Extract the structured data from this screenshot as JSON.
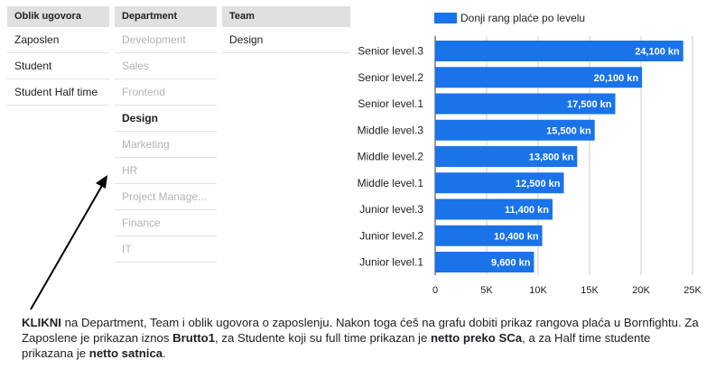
{
  "filters": {
    "oblik": {
      "header": "Oblik ugovora",
      "items": [
        "Zaposlen",
        "Student",
        "Student Half time"
      ]
    },
    "department": {
      "header": "Department",
      "items": [
        "Development",
        "Sales",
        "Frontend",
        "Design",
        "Marketing",
        "HR",
        "Project Manage...",
        "Finance",
        "IT"
      ],
      "selected": "Design"
    },
    "team": {
      "header": "Team",
      "items": [
        "Design"
      ]
    }
  },
  "chart_data": {
    "type": "bar",
    "orientation": "horizontal",
    "categories": [
      "Senior level.3",
      "Senior level.2",
      "Senior level.1",
      "Middle level.3",
      "Middle level.2",
      "Middle level.1",
      "Junior level.3",
      "Junior level.2",
      "Junior level.1"
    ],
    "series": [
      {
        "name": "Donji rang plaće po levelu",
        "values": [
          24100,
          20100,
          17500,
          15500,
          13800,
          12500,
          11400,
          10400,
          9600
        ],
        "labels": [
          "24,100 kn",
          "20,100 kn",
          "17,500 kn",
          "15,500 kn",
          "13,800 kn",
          "12,500 kn",
          "11,400 kn",
          "10,400 kn",
          "9,600 kn"
        ]
      }
    ],
    "xticks": [
      "0",
      "5K",
      "10K",
      "15K",
      "20K",
      "25K"
    ],
    "xlim": [
      0,
      25000
    ],
    "legend_position": "top",
    "grid": true,
    "bar_color": "#1a73e8"
  },
  "note": {
    "p1": "KLIKNI",
    "p2": " na Department, Team i oblik ugovora o zaposlenju. Nakon toga ćeš na grafu dobiti prikaz rangova plaća u Bornfightu. Za Zaposlene je prikazan iznos ",
    "p3": "Brutto1",
    "p4": ", za Studente koji su full time prikazan je ",
    "p5": "netto preko SCa",
    "p6": ", a za Half time studente prikazana je ",
    "p7": "netto satnica",
    "p8": "."
  }
}
